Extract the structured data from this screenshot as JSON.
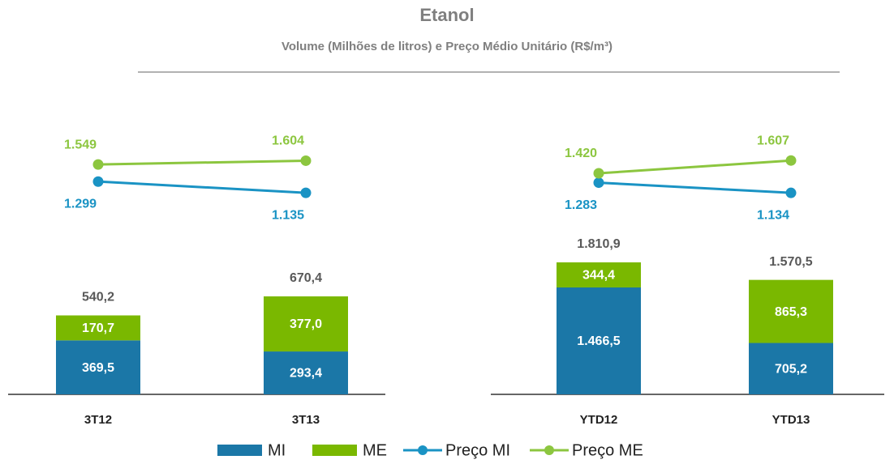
{
  "chart_data": {
    "type": "bar",
    "title": "Etanol",
    "subtitle": "Volume (Milhões de litros) e Preço Médio Unitário (R$/m³)",
    "categories": [
      "3T12",
      "3T13",
      "YTD12",
      "YTD13"
    ],
    "series": [
      {
        "name": "MI",
        "type": "bar",
        "color": "#1b77a7",
        "values": [
          369.5,
          293.4,
          1466.5,
          705.2
        ],
        "value_labels": [
          "369,5",
          "293,4",
          "1.466,5",
          "705,2"
        ]
      },
      {
        "name": "ME",
        "type": "bar",
        "color": "#7ab800",
        "values": [
          170.7,
          377.0,
          344.4,
          865.3
        ],
        "value_labels": [
          "170,7",
          "377,0",
          "344,4",
          "865,3"
        ]
      },
      {
        "name": "Preço MI",
        "type": "line",
        "color": "#1a93c4",
        "values": [
          1299,
          1135,
          1283,
          1134
        ],
        "value_labels": [
          "1.299",
          "1.135",
          "1.283",
          "1.134"
        ]
      },
      {
        "name": "Preço ME",
        "type": "line",
        "color": "#8cc63f",
        "values": [
          1549,
          1604,
          1420,
          1607
        ],
        "value_labels": [
          "1.549",
          "1.604",
          "1.420",
          "1.607"
        ]
      }
    ],
    "totals": [
      540.2,
      670.4,
      1810.9,
      1570.5
    ],
    "total_labels": [
      "540,2",
      "670,4",
      "1.810,9",
      "1.570,5"
    ]
  }
}
